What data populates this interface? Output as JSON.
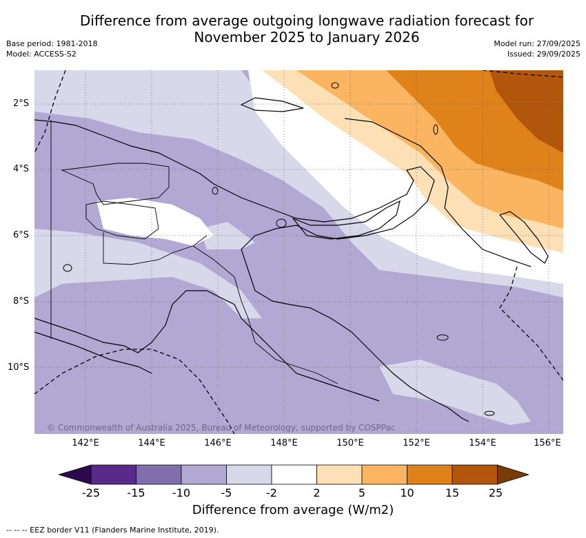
{
  "title": {
    "line1": "Difference from average outgoing longwave radiation forecast for",
    "line2": "November 2025 to January 2026"
  },
  "meta": {
    "base_period": "Base period: 1981-2018",
    "model": "Model: ACCESS-S2",
    "model_run": "Model run: 27/09/2025",
    "issued": "Issued: 29/09/2025"
  },
  "map": {
    "lat_labels": [
      "2°S",
      "4°S",
      "6°S",
      "8°S",
      "10°S"
    ],
    "lon_labels": [
      "142°E",
      "144°E",
      "146°E",
      "148°E",
      "150°E",
      "152°E",
      "154°E",
      "156°E"
    ],
    "copyright": "© Commonwealth of Australia 2025, Bureau of Meteorology, supported by COSPPac"
  },
  "colorbar": {
    "tick_labels": [
      "-25",
      "-15",
      "-10",
      "-5",
      "-2",
      "2",
      "5",
      "10",
      "15",
      "25"
    ],
    "colors": [
      "#2d0a4e",
      "#5a2a8a",
      "#7f6fac",
      "#b1a9d3",
      "#d9d8ea",
      "#ffffff",
      "#fde0b5",
      "#fbb45f",
      "#e0821a",
      "#b2560b",
      "#7a3b07"
    ],
    "title": "Difference from average (W/m2)"
  },
  "footer": {
    "eez_note": "--  --  -- EEZ border V11 (Flanders Marine Institute, 2019)."
  }
}
